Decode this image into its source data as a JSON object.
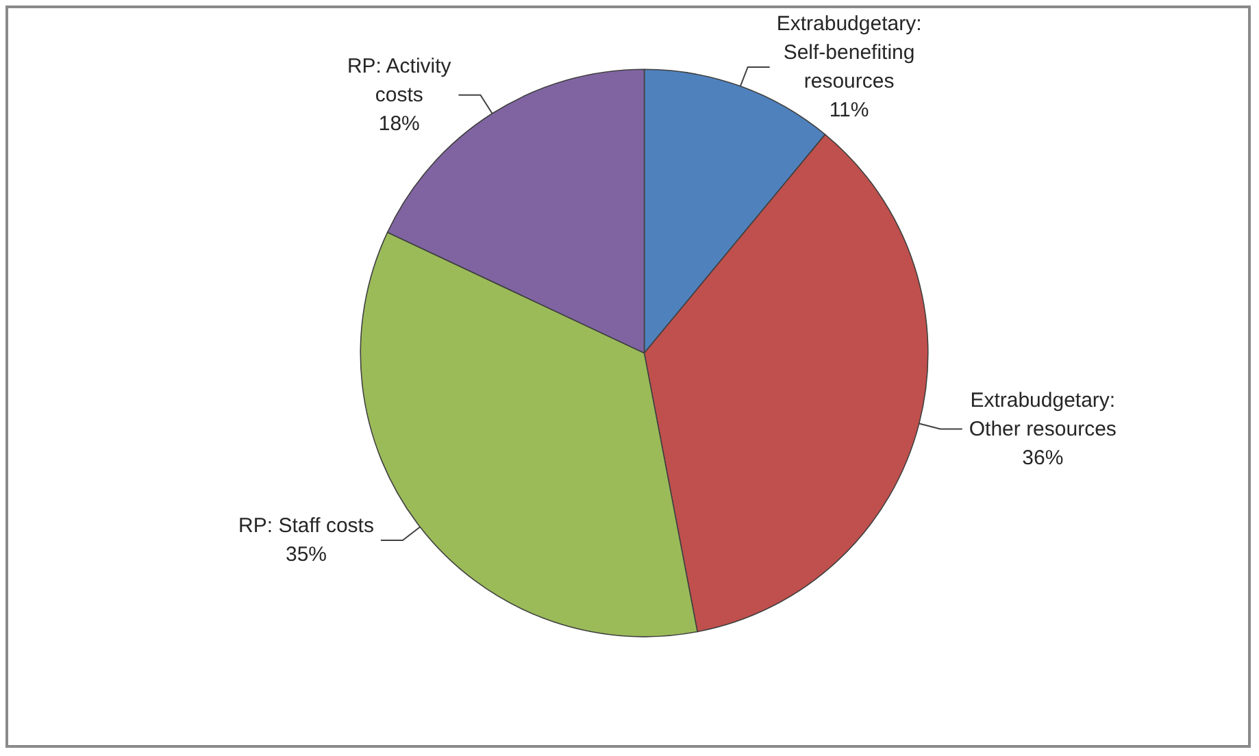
{
  "chart_data": {
    "type": "pie",
    "categories": [
      "Extrabudgetary: Self-benefiting resources",
      "Extrabudgetary: Other resources",
      "RP: Staff costs",
      "RP: Activity costs"
    ],
    "values": [
      11,
      36,
      35,
      18
    ],
    "value_labels": [
      "11%",
      "36%",
      "35%",
      "18%"
    ],
    "colors": [
      "#4f81bd",
      "#c0504d",
      "#9bbb59",
      "#8064a2"
    ]
  }
}
